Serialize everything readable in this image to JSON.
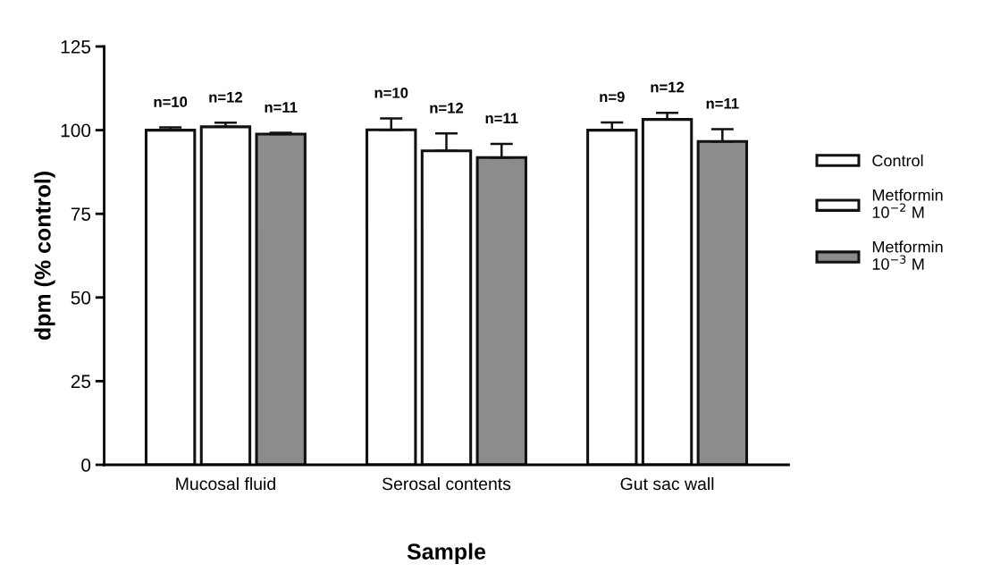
{
  "chart_data": {
    "type": "bar",
    "xlabel": "Sample",
    "ylabel": "dpm (% control)",
    "categories": [
      "Mucosal fluid",
      "Serosal contents",
      "Gut sac wall"
    ],
    "series": [
      {
        "name": "Control",
        "color": "#ffffff",
        "values": [
          100,
          100.1,
          100
        ],
        "errors": [
          [
            100,
            100.8
          ],
          [
            100.1,
            103.5
          ],
          [
            100,
            102.3
          ]
        ]
      },
      {
        "name": "Metformin\n10$^{−2}$ M",
        "color": "#ffffff",
        "values": [
          101,
          93.8,
          103.2
        ],
        "errors": [
          [
            101,
            102.2
          ],
          [
            93.8,
            99
          ],
          [
            103.2,
            105.2
          ]
        ]
      },
      {
        "name": "Metformin\n10$^{−3}$ M",
        "color": "#8c8c8c",
        "values": [
          98.8,
          91.8,
          96.6
        ],
        "errors": [
          [
            98.8,
            99.2
          ],
          [
            91.8,
            95.9
          ],
          [
            96.6,
            100.3
          ]
        ]
      }
    ],
    "annotations": [
      "n=10",
      "n=12",
      "n=11",
      "n=10",
      "n=12",
      "n=11",
      "n=9",
      "n=12",
      "n=11"
    ],
    "ylim": [
      0,
      125
    ],
    "yticks": [
      0,
      25,
      50,
      75,
      100,
      125
    ],
    "grid": false,
    "legend": "right"
  }
}
